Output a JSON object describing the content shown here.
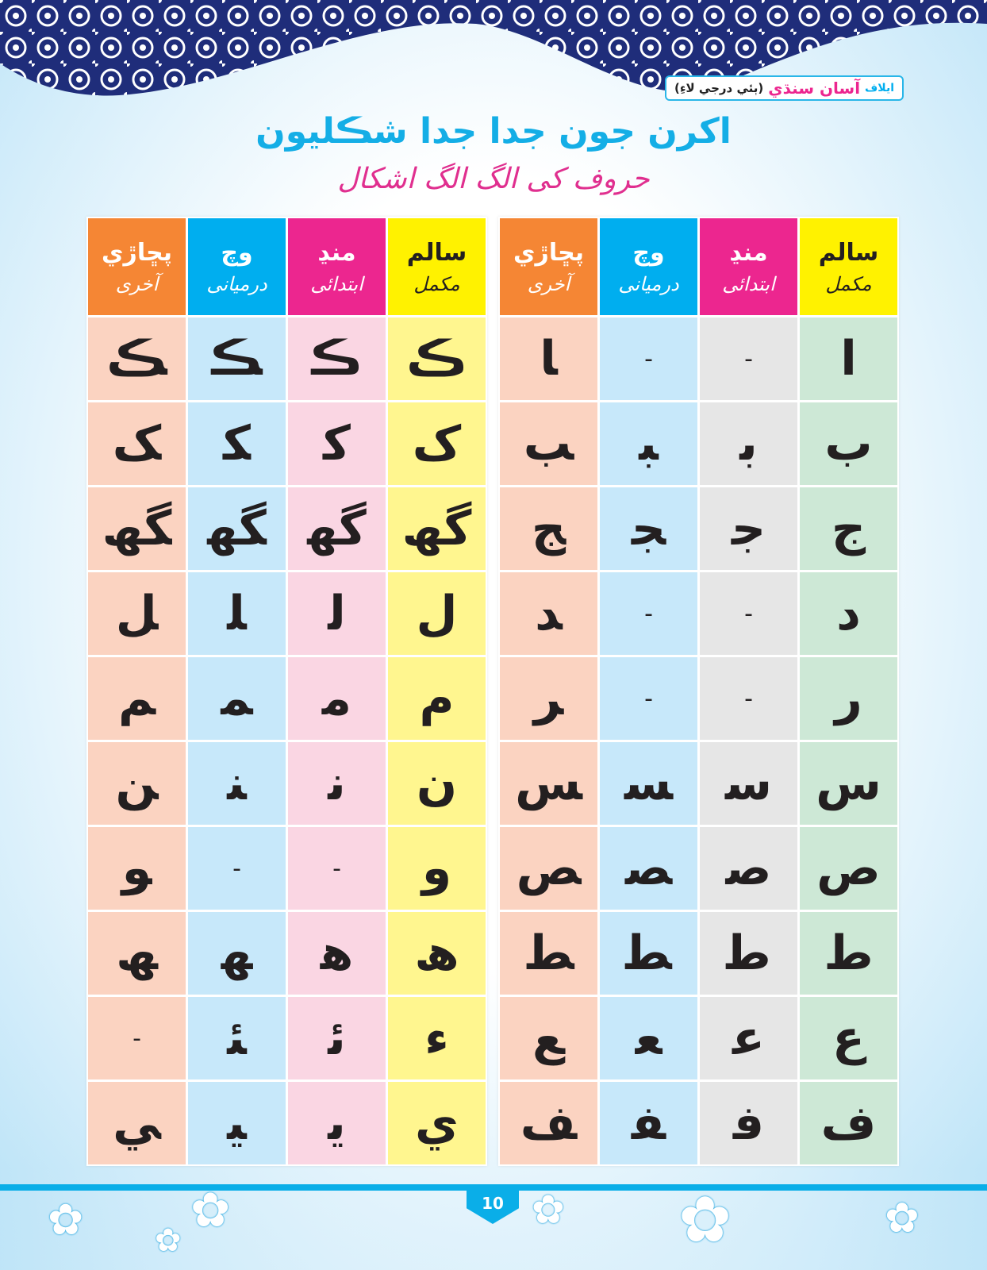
{
  "header": {
    "brand_prefix": "ايلاف",
    "brand_name": "آسان سنڌي",
    "brand_suffix": "(ٻئي درجي لاءِ)",
    "title": "اکرن جون جدا جدا شڪليون",
    "subtitle": "حروف کی الگ الگ اشکال"
  },
  "columns": [
    {
      "sindhi": "سالم",
      "urdu": "مکمل",
      "color": "#fff200"
    },
    {
      "sindhi": "منڍ",
      "urdu": "ابتدائی",
      "color": "#ec268f"
    },
    {
      "sindhi": "وچ",
      "urdu": "درمیانی",
      "color": "#00aeef"
    },
    {
      "sindhi": "پڇاڙي",
      "urdu": "آخری",
      "color": "#f58634"
    }
  ],
  "right_table": {
    "body_colors": [
      "#cde8d6",
      "#e6e6e6",
      "#c7e8fa",
      "#fbd3c1"
    ],
    "rows": [
      [
        "ا",
        "-",
        "-",
        "‍ا"
      ],
      [
        "ب",
        "ب‍",
        "‍ب‍",
        "‍ب"
      ],
      [
        "ج",
        "ج‍",
        "‍ج‍",
        "‍ج"
      ],
      [
        "د",
        "-",
        "-",
        "‍د"
      ],
      [
        "ر",
        "-",
        "-",
        "‍ر"
      ],
      [
        "س",
        "س‍",
        "‍س‍",
        "‍س"
      ],
      [
        "ص",
        "ص‍",
        "‍ص‍",
        "‍ص"
      ],
      [
        "ط",
        "ط‍",
        "‍ط‍",
        "‍ط"
      ],
      [
        "ع",
        "ع‍",
        "‍ع‍",
        "‍ع"
      ],
      [
        "ف",
        "ف‍",
        "‍ف‍",
        "‍ف"
      ]
    ]
  },
  "left_table": {
    "body_colors": [
      "#fff68f",
      "#fad6e3",
      "#c7e8fa",
      "#fbd3c1"
    ],
    "rows": [
      [
        "ڪ",
        "ڪ‍",
        "‍ڪ‍",
        "‍ڪ"
      ],
      [
        "ک",
        "ک‍",
        "‍ک‍",
        "‍ک"
      ],
      [
        "گھ",
        "گھ‍",
        "‍گھ‍",
        "‍گھ"
      ],
      [
        "ل",
        "ل‍",
        "‍ل‍",
        "‍ل"
      ],
      [
        "م",
        "م‍",
        "‍م‍",
        "‍م"
      ],
      [
        "ن",
        "ن‍",
        "‍ن‍",
        "‍ن"
      ],
      [
        "و",
        "-",
        "-",
        "‍و"
      ],
      [
        "ھ",
        "ھ‍",
        "‍ھ‍",
        "‍ھ"
      ],
      [
        "ء",
        "ئ‍",
        "‍ئ‍",
        "-"
      ],
      [
        "ي",
        "ي‍",
        "‍ي‍",
        "‍ي"
      ]
    ]
  },
  "footer": {
    "page_number": "10"
  }
}
